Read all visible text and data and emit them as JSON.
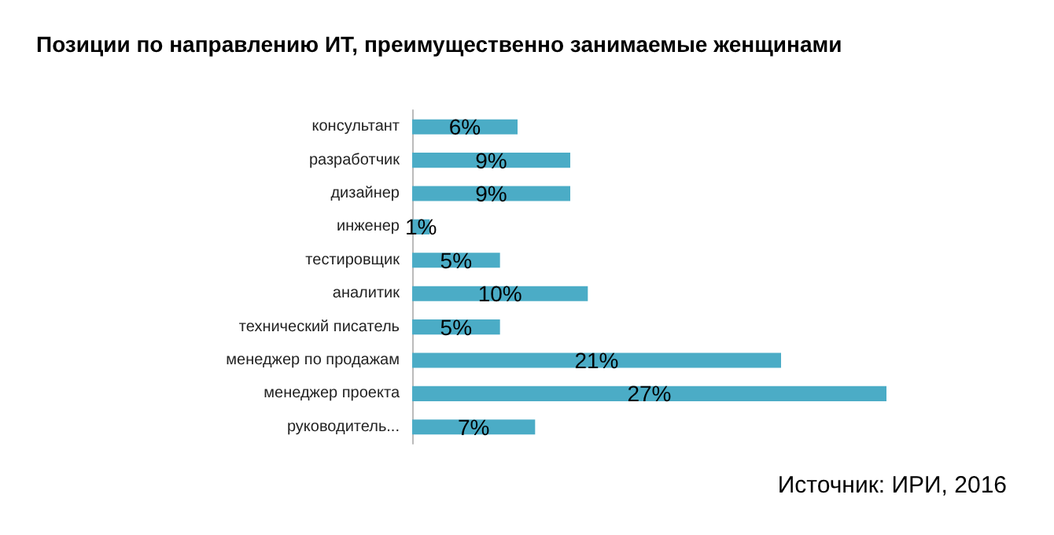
{
  "chart_data": {
    "type": "bar",
    "orientation": "horizontal",
    "title": "Позиции по направлению ИТ, преимущественно занимаемые женщинами",
    "categories": [
      "консультант",
      "разработчик",
      "дизайнер",
      "инженер",
      "тестировщик",
      "аналитик",
      "технический писатель",
      "менеджер по продажам",
      "менеджер проекта",
      "руководитель..."
    ],
    "values": [
      6,
      9,
      9,
      1,
      5,
      10,
      5,
      21,
      27,
      7
    ],
    "value_labels": [
      "6%",
      "9%",
      "9%",
      "1%",
      "5%",
      "10%",
      "5%",
      "21%",
      "27%",
      "7%"
    ],
    "color": "#4bacc6",
    "grid": false,
    "tick_labels": "y",
    "annotations": [
      "Источник: ИРИ, 2016"
    ]
  }
}
